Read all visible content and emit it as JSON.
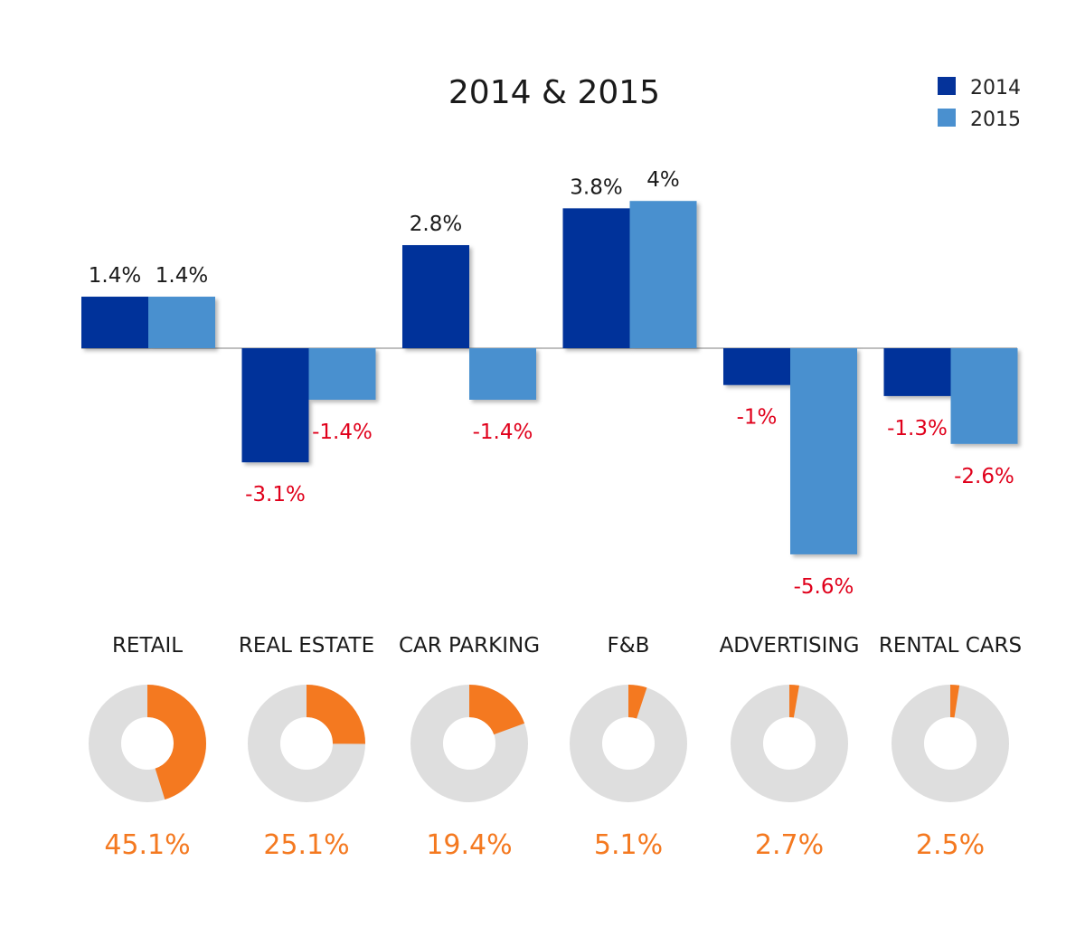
{
  "chart_data": [
    {
      "type": "bar",
      "title": "2014 & 2015",
      "categories": [
        "RETAIL",
        "REAL ESTATE",
        "CAR PARKING",
        "F&B",
        "ADVERTISING",
        "RENTAL CARS"
      ],
      "series": [
        {
          "name": "2014",
          "color": "#05339a",
          "values": [
            1.4,
            -3.1,
            2.8,
            3.8,
            -1.0,
            -1.3
          ],
          "labels": [
            "1.4%",
            "-3.1%",
            "2.8%",
            "3.8%",
            "-1%",
            "-1.3%"
          ]
        },
        {
          "name": "2015",
          "color": "#4a90cf",
          "values": [
            1.4,
            -1.4,
            -1.4,
            4.0,
            -5.6,
            -2.6
          ],
          "labels": [
            "1.4%",
            "-1.4%",
            "-1.4%",
            "4%",
            "-5.6%",
            "-2.6%"
          ]
        }
      ],
      "ylim": [
        -6,
        4.2
      ],
      "legend": "top-right",
      "grid": false,
      "positive_label_color": "#1a1a1a",
      "negative_label_color": "#e0001b"
    },
    {
      "type": "pie",
      "style": "donut",
      "categories": [
        "RETAIL",
        "REAL ESTATE",
        "CAR PARKING",
        "F&B",
        "ADVERTISING",
        "RENTAL CARS"
      ],
      "values": [
        45.1,
        25.1,
        19.4,
        5.1,
        2.7,
        2.5
      ],
      "labels": [
        "45.1%",
        "25.1%",
        "19.4%",
        "5.1%",
        "2.7%",
        "2.5%"
      ],
      "slice_color": "#f47920",
      "remainder_color": "#dedede"
    }
  ]
}
